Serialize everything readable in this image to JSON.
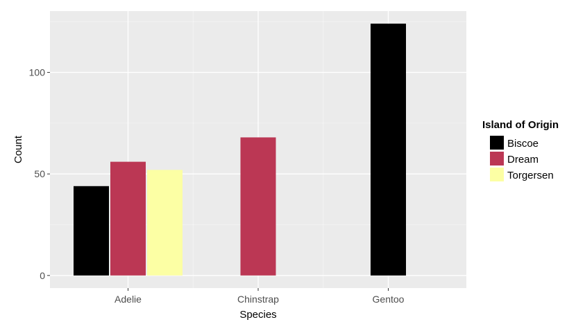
{
  "chart_data": {
    "type": "bar",
    "categories": [
      "Adelie",
      "Chinstrap",
      "Gentoo"
    ],
    "series": [
      {
        "name": "Biscoe",
        "color": "#000000",
        "values": [
          44,
          null,
          124
        ]
      },
      {
        "name": "Dream",
        "color": "#bb3754",
        "values": [
          56,
          68,
          null
        ]
      },
      {
        "name": "Torgersen",
        "color": "#fcffa4",
        "values": [
          52,
          null,
          null
        ]
      }
    ],
    "xlabel": "Species",
    "ylabel": "Count",
    "ylim": [
      -6.2,
      130.2
    ],
    "yticks": [
      0,
      50,
      100
    ],
    "y_minor_ticks": [
      25,
      75,
      125
    ],
    "legend_title": "Island of Origin",
    "legend_position": "right",
    "grid": true,
    "panel_background": "#ebebeb",
    "grid_color": "#ffffff"
  }
}
